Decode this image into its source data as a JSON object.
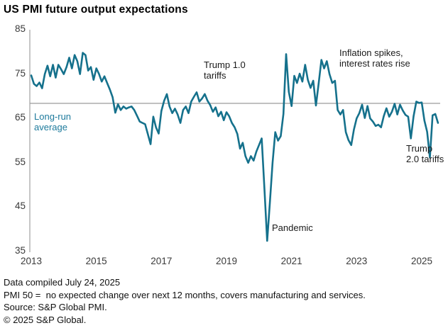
{
  "title": "US PMI future output expectations",
  "colors": {
    "line": "#15718C",
    "average_line": "#9b9b9b",
    "axis_line": "#a8a8a8",
    "tick_text": "#3a3a3a",
    "annotation_text": "#1a1a1a",
    "long_run_label_text": "#1d7a9c"
  },
  "annotations": {
    "long_run_average": "Long-run\naverage",
    "trump_1": "Trump 1.0\ntariffs",
    "inflation": "Inflation spikes,\ninterest rates rise",
    "pandemic": "Pandemic",
    "trump_2": "Trump\n2.0 tariffs"
  },
  "footer": {
    "compiled": "Data compiled July 24, 2025",
    "definition": "PMI 50 =  no expected change over next 12 months, covers manufacturing and services.",
    "source": "Source: S&P Global PMI.",
    "copyright": "© 2025 S&P Global."
  },
  "chart_data": {
    "type": "line",
    "title": "US PMI future output expectations",
    "xlabel": "",
    "ylabel": "",
    "x_unit": "month",
    "x_start": "2013-01",
    "x_end": "2025-07",
    "x_tick_labels": [
      "2013",
      "2015",
      "2017",
      "2019",
      "2021",
      "2023",
      "2025"
    ],
    "y_ticks": [
      35,
      45,
      55,
      65,
      75,
      85
    ],
    "ylim": [
      35,
      85
    ],
    "grid": "off",
    "legend_position": "none",
    "long_run_average": 68.4,
    "annotations": [
      {
        "text": "Long-run average",
        "x": "2013-03",
        "y": 66
      },
      {
        "text": "Trump 1.0 tariffs",
        "x": "2018-04",
        "y": 76
      },
      {
        "text": "Pandemic",
        "x": "2020-06",
        "y": 40
      },
      {
        "text": "Inflation spikes, interest rates rise",
        "x": "2022-06",
        "y": 79
      },
      {
        "text": "Trump 2.0 tariffs",
        "x": "2025-03",
        "y": 57
      }
    ],
    "series": [
      {
        "name": "US PMI future output expectations",
        "color": "#15718C",
        "monthly_values": [
          74.7,
          72.8,
          72.3,
          73.1,
          71.8,
          75.0,
          76.9,
          74.5,
          77.1,
          74.2,
          77.1,
          76.1,
          75.0,
          76.6,
          78.7,
          76.3,
          79.3,
          77.9,
          75.0,
          79.8,
          79.3,
          75.8,
          76.6,
          73.7,
          76.3,
          75.0,
          73.3,
          74.5,
          73.0,
          71.5,
          69.8,
          66.3,
          68.2,
          66.9,
          67.7,
          67.2,
          67.5,
          67.7,
          66.9,
          65.6,
          64.3,
          64.0,
          63.7,
          61.5,
          59.2,
          65.4,
          63.0,
          61.6,
          66.7,
          69.0,
          70.5,
          67.7,
          66.2,
          67.2,
          65.9,
          64.0,
          66.9,
          67.7,
          66.2,
          68.8,
          69.9,
          70.9,
          68.8,
          69.5,
          70.5,
          69.0,
          68.0,
          66.5,
          67.5,
          65.5,
          66.5,
          64.6,
          66.4,
          65.5,
          64.0,
          63.0,
          61.5,
          58.2,
          59.5,
          56.5,
          55.0,
          56.5,
          55.5,
          57.5,
          59.0,
          60.5,
          49.0,
          37.4,
          46.0,
          55.0,
          61.9,
          60.0,
          61.0,
          66.0,
          79.5,
          71.0,
          67.8,
          74.6,
          73.0,
          75.1,
          73.3,
          77.1,
          73.7,
          71.9,
          73.5,
          67.9,
          73.0,
          78.2,
          76.3,
          77.9,
          75.0,
          73.0,
          73.5,
          66.9,
          65.9,
          66.9,
          61.9,
          60.1,
          59.0,
          62.5,
          65.0,
          66.2,
          68.1,
          65.1,
          67.8,
          65.0,
          64.3,
          63.3,
          63.6,
          63.0,
          65.5,
          67.3,
          65.4,
          66.5,
          68.3,
          65.9,
          68.1,
          66.8,
          65.8,
          65.4,
          60.5,
          65.5,
          68.8,
          68.5,
          68.6,
          64.5,
          62.0,
          56.2,
          65.7,
          66.0,
          64.0
        ]
      }
    ]
  }
}
